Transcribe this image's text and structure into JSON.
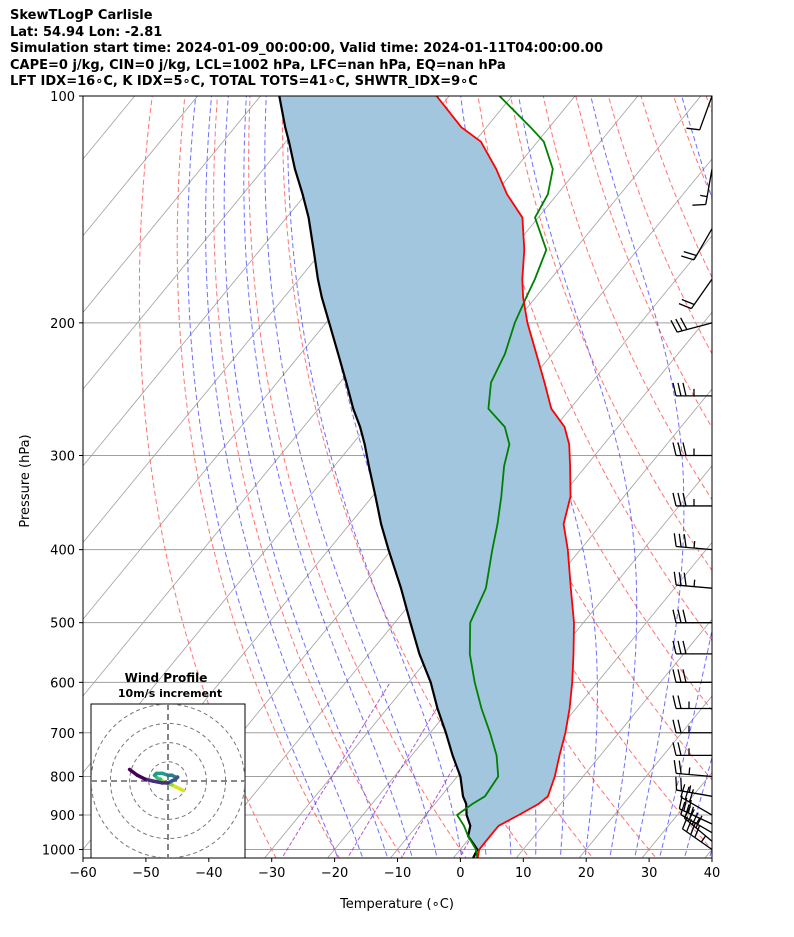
{
  "header": {
    "line1": "SkewTLogP Carlisle",
    "line2": "Lat: 54.94   Lon: -2.81",
    "line3": "Simulation start time: 2024-01-09_00:00:00, Valid time: 2024-01-11T04:00:00.00",
    "line4": "CAPE=0 j/kg, CIN=0 j/kg, LCL=1002 hPa, LFC=nan hPa, EQ=nan hPa",
    "line5": "LFT IDX=16∘C, K IDX=5∘C, TOTAL TOTS=41∘C, SHWTR_IDX=9∘C"
  },
  "colors": {
    "temperature": "#ff0000",
    "dewpoint": "#008000",
    "parcel": "#000000",
    "cape_fill": "#a3c6df",
    "dry_adiabat": "#ff5a5a",
    "moist_adiabat": "#4a4aff",
    "mixing_ratio": "#9b30c8",
    "isotherm": "#a0a0a0"
  },
  "chart_data": [
    {
      "type": "line",
      "xlabel": "Temperature (∘C)",
      "ylabel": "Pressure (hPa)",
      "xlim": [
        -60,
        40
      ],
      "ylim": [
        1050,
        100
      ],
      "y_scale": "log",
      "grid": true,
      "x_ticks": [
        -60,
        -50,
        -40,
        -30,
        -20,
        -10,
        0,
        10,
        20,
        30,
        40
      ],
      "x_tick_labels": [
        "−60",
        "−50",
        "−40",
        "−30",
        "−20",
        "−10",
        "0",
        "10",
        "20",
        "30",
        "40"
      ],
      "y_ticks": [
        1000,
        900,
        800,
        700,
        600,
        500,
        400,
        300,
        200,
        100
      ],
      "y_tick_labels": [
        "1000",
        "900",
        "800",
        "700",
        "600",
        "500",
        "400",
        "300",
        "200",
        "100"
      ],
      "series": [
        {
          "role": "temperature",
          "pressure": [
            1030,
            1000,
            960,
            930,
            900,
            870,
            850,
            800,
            750,
            700,
            650,
            600,
            550,
            500,
            450,
            400,
            370,
            340,
            310,
            290,
            275,
            260,
            240,
            220,
            200,
            185,
            175,
            160,
            145,
            135,
            125,
            115,
            110,
            100
          ],
          "temp": [
            4,
            3,
            3,
            3,
            4.8,
            6.5,
            7,
            5.5,
            3.5,
            1.5,
            -1,
            -4,
            -7.5,
            -11.5,
            -16.5,
            -22,
            -26,
            -28.5,
            -32.5,
            -35.5,
            -38.5,
            -43,
            -47.5,
            -52.5,
            -58,
            -62,
            -64.5,
            -68,
            -72.5,
            -78,
            -83,
            -89,
            -94,
            -102
          ]
        },
        {
          "role": "dewpoint",
          "pressure": [
            1030,
            1000,
            960,
            930,
            900,
            870,
            850,
            800,
            750,
            700,
            650,
            600,
            550,
            500,
            450,
            400,
            370,
            340,
            310,
            290,
            275,
            260,
            240,
            220,
            200,
            185,
            175,
            160,
            145,
            135,
            125,
            115,
            110,
            100
          ],
          "temp": [
            4,
            2.5,
            -0.5,
            -2.5,
            -5,
            -4,
            -3,
            -3.5,
            -6.5,
            -10.5,
            -15,
            -19.5,
            -24,
            -28,
            -30,
            -34,
            -36.5,
            -39.5,
            -43,
            -45,
            -48,
            -53,
            -56,
            -57.5,
            -60,
            -61.5,
            -62.5,
            -64.5,
            -70.5,
            -71.5,
            -74,
            -79,
            -83,
            -92
          ]
        },
        {
          "role": "parcel",
          "pressure": [
            1030,
            1000,
            960,
            930,
            900,
            870,
            850,
            800,
            750,
            700,
            650,
            600,
            550,
            500,
            450,
            400,
            370,
            340,
            310,
            290,
            275,
            260,
            240,
            220,
            200,
            185,
            175,
            160,
            145,
            135,
            125,
            115,
            110,
            100
          ],
          "temp": [
            3.2,
            2.7,
            -0.5,
            -1.5,
            -3.5,
            -5,
            -6.5,
            -9.5,
            -13.5,
            -17.5,
            -22,
            -26.5,
            -32,
            -37.5,
            -43.5,
            -50.5,
            -55,
            -59.5,
            -64.5,
            -68,
            -71,
            -74.5,
            -79,
            -84,
            -89.5,
            -94,
            -97,
            -101.5,
            -106.5,
            -110.5,
            -115,
            -119.5,
            -122,
            -127
          ]
        }
      ]
    },
    {
      "type": "scatter",
      "title": "Wind Profile",
      "subtitle": "10m/s increment",
      "ring_step_ms": 10,
      "levels_hpa": [
        1000,
        975,
        950,
        925,
        900,
        875,
        850,
        825,
        800,
        775,
        750,
        700,
        650,
        600,
        550,
        500,
        450,
        400,
        350,
        300,
        250,
        200,
        150,
        100
      ],
      "u_ms": [
        8,
        6,
        4,
        2,
        -1,
        -3,
        -4,
        -5,
        -6,
        -7,
        -6,
        -3,
        0,
        2,
        4,
        5,
        4,
        2,
        0,
        -3,
        -8,
        -12,
        -16,
        -20
      ],
      "v_ms": [
        -5,
        -4,
        -3,
        -2,
        -1,
        0,
        1,
        1,
        2,
        3,
        4,
        4,
        3,
        3,
        2,
        2,
        1,
        0,
        -1,
        -1,
        0,
        1,
        3,
        6
      ]
    }
  ],
  "barbs": [
    {
      "p": 1000,
      "speed_kt": 45,
      "dir_deg": 305
    },
    {
      "p": 975,
      "speed_kt": 40,
      "dir_deg": 310
    },
    {
      "p": 950,
      "speed_kt": 35,
      "dir_deg": 300
    },
    {
      "p": 925,
      "speed_kt": 30,
      "dir_deg": 295
    },
    {
      "p": 900,
      "speed_kt": 30,
      "dir_deg": 300
    },
    {
      "p": 850,
      "speed_kt": 25,
      "dir_deg": 280
    },
    {
      "p": 800,
      "speed_kt": 25,
      "dir_deg": 275
    },
    {
      "p": 750,
      "speed_kt": 25,
      "dir_deg": 270
    },
    {
      "p": 700,
      "speed_kt": 25,
      "dir_deg": 270
    },
    {
      "p": 650,
      "speed_kt": 25,
      "dir_deg": 270
    },
    {
      "p": 600,
      "speed_kt": 30,
      "dir_deg": 270
    },
    {
      "p": 550,
      "speed_kt": 30,
      "dir_deg": 270
    },
    {
      "p": 500,
      "speed_kt": 30,
      "dir_deg": 270
    },
    {
      "p": 450,
      "speed_kt": 35,
      "dir_deg": 275
    },
    {
      "p": 400,
      "speed_kt": 35,
      "dir_deg": 275
    },
    {
      "p": 350,
      "speed_kt": 35,
      "dir_deg": 270
    },
    {
      "p": 300,
      "speed_kt": 35,
      "dir_deg": 270
    },
    {
      "p": 250,
      "speed_kt": 35,
      "dir_deg": 270
    },
    {
      "p": 200,
      "speed_kt": 30,
      "dir_deg": 255
    },
    {
      "p": 175,
      "speed_kt": 20,
      "dir_deg": 215
    },
    {
      "p": 150,
      "speed_kt": 20,
      "dir_deg": 210
    },
    {
      "p": 125,
      "speed_kt": 15,
      "dir_deg": 190
    },
    {
      "p": 100,
      "speed_kt": 10,
      "dir_deg": 200
    }
  ]
}
